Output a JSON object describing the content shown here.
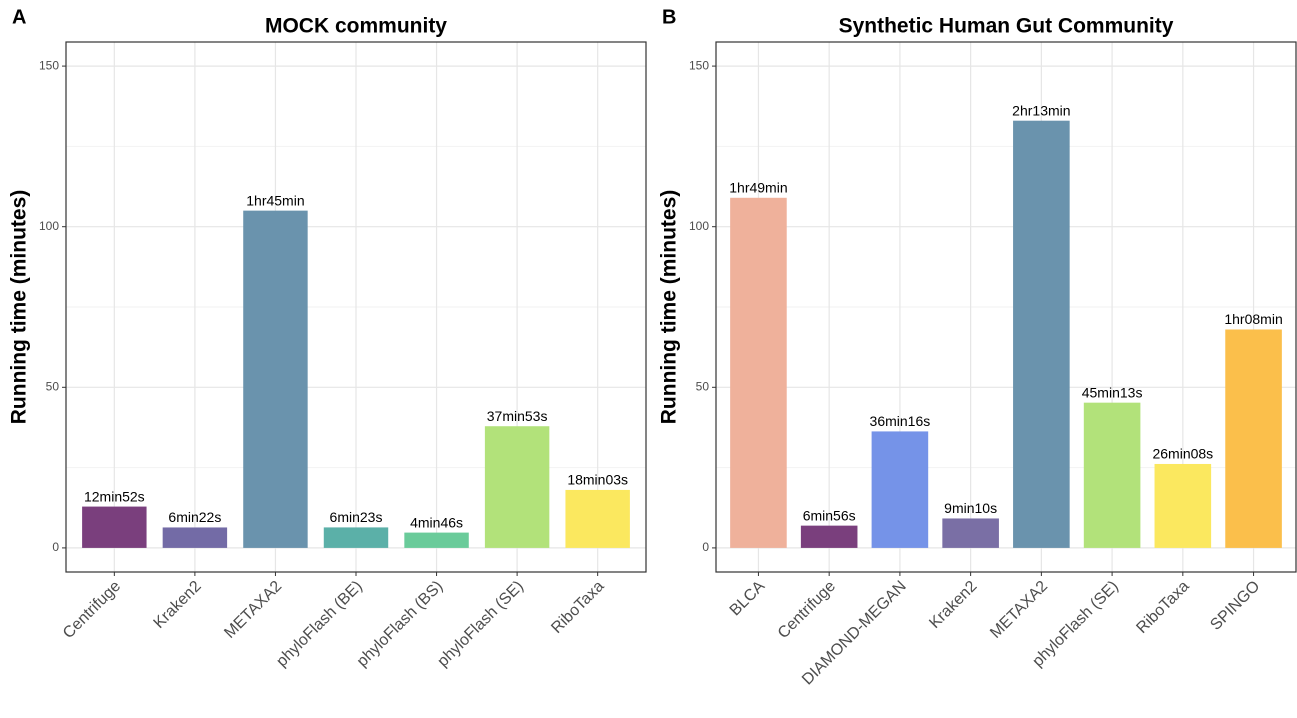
{
  "chart_data": [
    {
      "type": "bar",
      "panel_label": "A",
      "title": "MOCK community",
      "y_label": "Running time (minutes)",
      "categories": [
        "Centrifuge",
        "Kraken2",
        "METAXA2",
        "phyloFlash (BE)",
        "phyloFlash (BS)",
        "phyloFlash (SE)",
        "RiboTaxa"
      ],
      "values": [
        12.867,
        6.367,
        105,
        6.383,
        4.767,
        37.883,
        18.05
      ],
      "value_labels": [
        "12min52s",
        "6min22s",
        "1hr45min",
        "6min23s",
        "4min46s",
        "37min53s",
        "18min03s"
      ],
      "colors": [
        "#7a3f7d",
        "#736ba6",
        "#6a93ad",
        "#5bb0a8",
        "#6acb9a",
        "#b2e27a",
        "#fbe85f"
      ],
      "ylim": [
        -7.5,
        157.5
      ],
      "yticks": [
        0,
        50,
        100,
        150
      ],
      "minor_yticks": [
        25,
        75,
        125
      ],
      "grid": true
    },
    {
      "type": "bar",
      "panel_label": "B",
      "title": "Synthetic Human Gut Community",
      "y_label": "Running time (minutes)",
      "categories": [
        "BLCA",
        "Centrifuge",
        "DIAMOND-MEGAN",
        "Kraken2",
        "METAXA2",
        "phyloFlash (SE)",
        "RiboTaxa",
        "SPINGO"
      ],
      "values": [
        109,
        6.933,
        36.267,
        9.167,
        133,
        45.217,
        26.133,
        68
      ],
      "value_labels": [
        "1hr49min",
        "6min56s",
        "36min16s",
        "9min10s",
        "2hr13min",
        "45min13s",
        "26min08s",
        "1hr08min"
      ],
      "colors": [
        "#efb19b",
        "#7a3f7d",
        "#7593e8",
        "#7a6fa5",
        "#6a93ad",
        "#b2e27a",
        "#fbe85f",
        "#fbbf4b"
      ],
      "ylim": [
        -7.5,
        157.5
      ],
      "yticks": [
        0,
        50,
        100,
        150
      ],
      "minor_yticks": [
        25,
        75,
        125
      ],
      "grid": true
    }
  ]
}
